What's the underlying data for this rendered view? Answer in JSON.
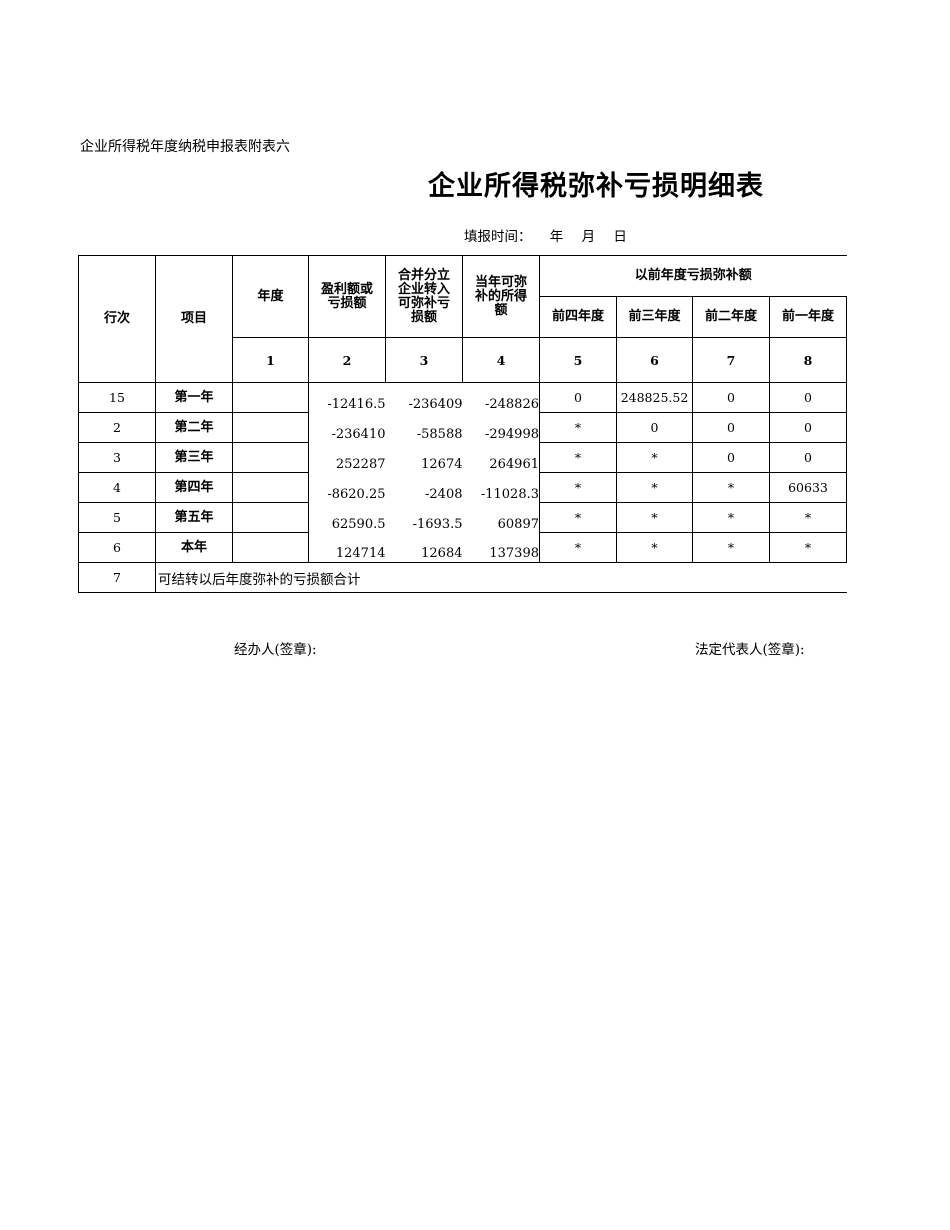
{
  "header": {
    "subtitle": "企业所得税年度纳税申报表附表六",
    "title": "企业所得税弥补亏损明细表",
    "fill_time_label": "填报时间：",
    "year": "年",
    "month": "月",
    "day": "日"
  },
  "table": {
    "headers": {
      "row_no": "行次",
      "item": "项目",
      "year": "年度",
      "profit_loss": "盈利额或亏损额",
      "merged_transfer": "合并分立企业转入可弥补亏损额",
      "current_offsettable": "当年可弥补的所得额",
      "prior_group": "以前年度亏损弥补额",
      "prior4": "前四年度",
      "prior3": "前三年度",
      "prior2": "前二年度",
      "prior1": "前一年度",
      "col_numbers": [
        "1",
        "2",
        "3",
        "4",
        "5",
        "6",
        "7",
        "8"
      ]
    },
    "rows": [
      {
        "row_no": "15",
        "item": "第一年",
        "year": "",
        "c2": "-12416.5",
        "c3": "-236409",
        "c4": "-248826",
        "c5": "0",
        "c6": "248825.52",
        "c7": "0",
        "c8": "0"
      },
      {
        "row_no": "2",
        "item": "第二年",
        "year": "",
        "c2": "-236410",
        "c3": "-58588",
        "c4": "-294998",
        "c5": "*",
        "c6": "0",
        "c7": "0",
        "c8": "0"
      },
      {
        "row_no": "3",
        "item": "第三年",
        "year": "",
        "c2": "252287",
        "c3": "12674",
        "c4": "264961",
        "c5": "*",
        "c6": "*",
        "c7": "0",
        "c8": "0"
      },
      {
        "row_no": "4",
        "item": "第四年",
        "year": "",
        "c2": "-8620.25",
        "c3": "-2408",
        "c4": "-11028.3",
        "c5": "*",
        "c6": "*",
        "c7": "*",
        "c8": "60633"
      },
      {
        "row_no": "5",
        "item": "第五年",
        "year": "",
        "c2": "62590.5",
        "c3": "-1693.5",
        "c4": "60897",
        "c5": "*",
        "c6": "*",
        "c7": "*",
        "c8": "*"
      },
      {
        "row_no": "6",
        "item": "本年",
        "year": "",
        "c2": "124714",
        "c3": "12684",
        "c4": "137398",
        "c5": "*",
        "c6": "*",
        "c7": "*",
        "c8": "*"
      }
    ],
    "total_row": {
      "row_no": "7",
      "label": "可结转以后年度弥补的亏损额合计"
    }
  },
  "footer": {
    "handler": "经办人(签章):",
    "legal_rep": "法定代表人(签章):"
  }
}
